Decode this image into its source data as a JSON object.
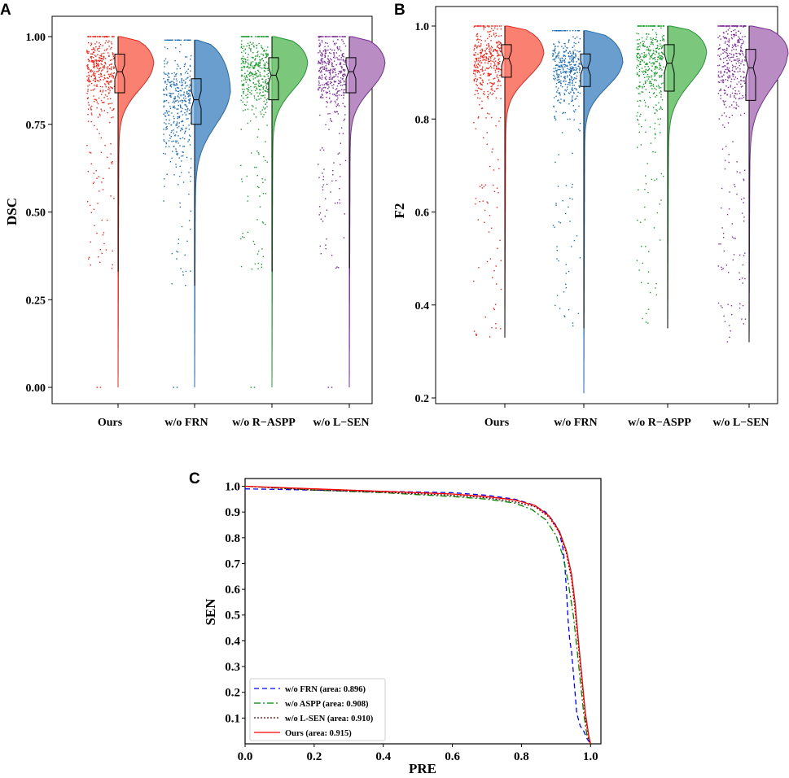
{
  "chart_data": [
    {
      "panel": "A",
      "type": "raincloud",
      "ylabel": "DSC",
      "xlabel": "",
      "ylim": [
        0.0,
        1.0
      ],
      "yticks": [
        "0.00",
        "0.25",
        "0.50",
        "0.75",
        "1.00"
      ],
      "ytick_values": [
        0.0,
        0.25,
        0.5,
        0.75,
        1.0
      ],
      "categories": [
        "Ours",
        "w/o FRN",
        "w/o R−ASPP",
        "w/o L−SEN"
      ],
      "series": [
        {
          "name": "Ours",
          "color": "#fa8072",
          "point_color": "#e8261a",
          "median": 0.9,
          "q1": 0.84,
          "q3": 0.95,
          "notch": 0.02,
          "mode": 0.92,
          "spread": 0.07,
          "min": 0.0,
          "max": 1.0,
          "tail_min": 0.33
        },
        {
          "name": "w/o FRN",
          "color": "#6a9ecf",
          "point_color": "#1f6db0",
          "median": 0.82,
          "q1": 0.75,
          "q3": 0.88,
          "notch": 0.025,
          "mode": 0.84,
          "spread": 0.09,
          "min": 0.0,
          "max": 0.99,
          "tail_min": 0.29
        },
        {
          "name": "w/o R−ASPP",
          "color": "#7bc77b",
          "point_color": "#1e9a30",
          "median": 0.89,
          "q1": 0.82,
          "q3": 0.94,
          "notch": 0.02,
          "mode": 0.92,
          "spread": 0.07,
          "min": 0.0,
          "max": 1.0,
          "tail_min": 0.33
        },
        {
          "name": "w/o L−SEN",
          "color": "#b98cc4",
          "point_color": "#7a2d94",
          "median": 0.9,
          "q1": 0.84,
          "q3": 0.94,
          "notch": 0.02,
          "mode": 0.92,
          "spread": 0.07,
          "min": 0.0,
          "max": 1.0,
          "tail_min": 0.34
        }
      ]
    },
    {
      "panel": "B",
      "type": "raincloud",
      "ylabel": "F2",
      "xlabel": "",
      "ylim": [
        0.2,
        1.0
      ],
      "yticks": [
        "0.2",
        "0.4",
        "0.6",
        "0.8",
        "1.0"
      ],
      "ytick_values": [
        0.2,
        0.4,
        0.6,
        0.8,
        1.0
      ],
      "categories": [
        "Ours",
        "w/o FRN",
        "w/o R−ASPP",
        "w/o L−SEN"
      ],
      "series": [
        {
          "name": "Ours",
          "color": "#fa8072",
          "point_color": "#e8261a",
          "median": 0.93,
          "q1": 0.89,
          "q3": 0.96,
          "notch": 0.015,
          "mode": 0.94,
          "spread": 0.05,
          "min": 0.33,
          "max": 1.0,
          "tail_min": 0.33
        },
        {
          "name": "w/o FRN",
          "color": "#6a9ecf",
          "point_color": "#1f6db0",
          "median": 0.91,
          "q1": 0.87,
          "q3": 0.94,
          "notch": 0.015,
          "mode": 0.92,
          "spread": 0.05,
          "min": 0.21,
          "max": 0.99,
          "tail_min": 0.35
        },
        {
          "name": "w/o R−ASPP",
          "color": "#7bc77b",
          "point_color": "#1e9a30",
          "median": 0.92,
          "q1": 0.86,
          "q3": 0.96,
          "notch": 0.02,
          "mode": 0.94,
          "spread": 0.06,
          "min": 0.35,
          "max": 1.0,
          "tail_min": 0.35
        },
        {
          "name": "w/o L−SEN",
          "color": "#b98cc4",
          "point_color": "#7a2d94",
          "median": 0.91,
          "q1": 0.84,
          "q3": 0.95,
          "notch": 0.02,
          "mode": 0.94,
          "spread": 0.07,
          "min": 0.32,
          "max": 1.0,
          "tail_min": 0.32
        }
      ]
    },
    {
      "panel": "C",
      "type": "line",
      "title": "",
      "xlabel": "PRE",
      "ylabel": "SEN",
      "xlim": [
        0.0,
        1.03
      ],
      "ylim": [
        0.0,
        1.03
      ],
      "xticks": [
        "0.0",
        "0.2",
        "0.4",
        "0.6",
        "0.8",
        "1.0"
      ],
      "xtick_values": [
        0.0,
        0.2,
        0.4,
        0.6,
        0.8,
        1.0
      ],
      "yticks": [
        "0.1",
        "0.2",
        "0.3",
        "0.4",
        "0.5",
        "0.6",
        "0.7",
        "0.8",
        "0.9",
        "1.0"
      ],
      "ytick_values": [
        0.1,
        0.2,
        0.3,
        0.4,
        0.5,
        0.6,
        0.7,
        0.8,
        0.9,
        1.0
      ],
      "legend_position": "lower-left",
      "series": [
        {
          "name": "w/o FRN (area: 0.896)",
          "color": "#0000ff",
          "dash": "6,4",
          "x": [
            0.0,
            0.2,
            0.4,
            0.6,
            0.7,
            0.78,
            0.83,
            0.87,
            0.895,
            0.91,
            0.92,
            0.925,
            0.93,
            0.935,
            0.94,
            0.945,
            0.95,
            0.955,
            0.96,
            0.97,
            0.98,
            0.99,
            1.0
          ],
          "y": [
            0.99,
            0.985,
            0.98,
            0.975,
            0.965,
            0.95,
            0.93,
            0.9,
            0.86,
            0.82,
            0.76,
            0.7,
            0.6,
            0.48,
            0.4,
            0.36,
            0.28,
            0.2,
            0.12,
            0.07,
            0.05,
            0.02,
            0.0
          ]
        },
        {
          "name": "w/o ASPP (area: 0.908)",
          "color": "#008000",
          "dash": "8,3,2,3",
          "x": [
            0.0,
            0.2,
            0.4,
            0.6,
            0.7,
            0.78,
            0.83,
            0.87,
            0.9,
            0.92,
            0.935,
            0.95,
            0.96,
            0.97,
            0.98,
            0.99,
            1.0
          ],
          "y": [
            1.0,
            0.985,
            0.975,
            0.96,
            0.95,
            0.935,
            0.91,
            0.87,
            0.81,
            0.73,
            0.63,
            0.5,
            0.38,
            0.25,
            0.12,
            0.03,
            0.0
          ]
        },
        {
          "name": "w/o L-SEN (area: 0.910)",
          "color": "#5a0000",
          "dash": "2,2",
          "x": [
            0.0,
            0.2,
            0.4,
            0.6,
            0.7,
            0.78,
            0.84,
            0.88,
            0.91,
            0.93,
            0.945,
            0.955,
            0.965,
            0.975,
            0.985,
            0.995,
            1.0
          ],
          "y": [
            1.0,
            0.985,
            0.977,
            0.965,
            0.955,
            0.94,
            0.92,
            0.88,
            0.82,
            0.74,
            0.64,
            0.52,
            0.38,
            0.24,
            0.1,
            0.02,
            0.0
          ]
        },
        {
          "name": "Ours (area: 0.915)",
          "color": "#ff0000",
          "dash": "",
          "x": [
            0.0,
            0.2,
            0.4,
            0.6,
            0.7,
            0.78,
            0.84,
            0.88,
            0.91,
            0.93,
            0.945,
            0.955,
            0.965,
            0.975,
            0.985,
            0.995,
            1.0
          ],
          "y": [
            1.0,
            0.99,
            0.98,
            0.97,
            0.96,
            0.947,
            0.925,
            0.885,
            0.825,
            0.75,
            0.66,
            0.55,
            0.4,
            0.26,
            0.12,
            0.03,
            0.0
          ]
        }
      ]
    }
  ],
  "panel_labels": {
    "a": "A",
    "b": "B",
    "c": "C"
  }
}
